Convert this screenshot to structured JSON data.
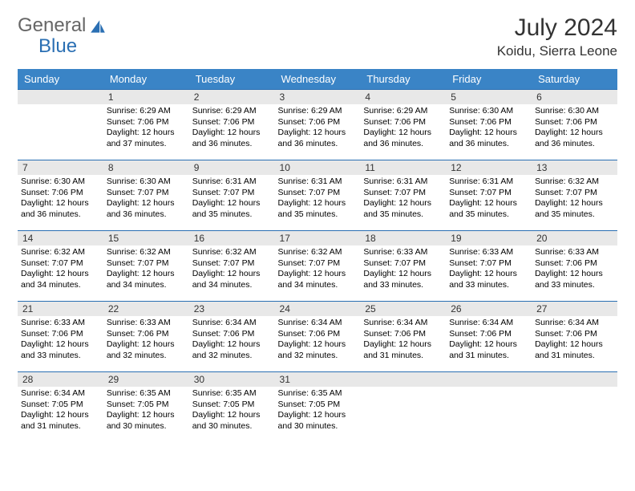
{
  "logo": {
    "part1": "General",
    "part2": "Blue"
  },
  "title": "July 2024",
  "location": "Koidu, Sierra Leone",
  "colors": {
    "header_bg": "#3a84c6",
    "header_text": "#ffffff",
    "row_divider": "#2a6fb3",
    "daynum_bg": "#e8e8e8",
    "page_bg": "#ffffff",
    "text": "#000000",
    "logo_gray": "#666666",
    "logo_blue": "#2a6fb3"
  },
  "weekdays": [
    "Sunday",
    "Monday",
    "Tuesday",
    "Wednesday",
    "Thursday",
    "Friday",
    "Saturday"
  ],
  "weeks": [
    [
      null,
      {
        "n": "1",
        "sr": "6:29 AM",
        "ss": "7:06 PM",
        "dl": "12 hours and 37 minutes."
      },
      {
        "n": "2",
        "sr": "6:29 AM",
        "ss": "7:06 PM",
        "dl": "12 hours and 36 minutes."
      },
      {
        "n": "3",
        "sr": "6:29 AM",
        "ss": "7:06 PM",
        "dl": "12 hours and 36 minutes."
      },
      {
        "n": "4",
        "sr": "6:29 AM",
        "ss": "7:06 PM",
        "dl": "12 hours and 36 minutes."
      },
      {
        "n": "5",
        "sr": "6:30 AM",
        "ss": "7:06 PM",
        "dl": "12 hours and 36 minutes."
      },
      {
        "n": "6",
        "sr": "6:30 AM",
        "ss": "7:06 PM",
        "dl": "12 hours and 36 minutes."
      }
    ],
    [
      {
        "n": "7",
        "sr": "6:30 AM",
        "ss": "7:06 PM",
        "dl": "12 hours and 36 minutes."
      },
      {
        "n": "8",
        "sr": "6:30 AM",
        "ss": "7:07 PM",
        "dl": "12 hours and 36 minutes."
      },
      {
        "n": "9",
        "sr": "6:31 AM",
        "ss": "7:07 PM",
        "dl": "12 hours and 35 minutes."
      },
      {
        "n": "10",
        "sr": "6:31 AM",
        "ss": "7:07 PM",
        "dl": "12 hours and 35 minutes."
      },
      {
        "n": "11",
        "sr": "6:31 AM",
        "ss": "7:07 PM",
        "dl": "12 hours and 35 minutes."
      },
      {
        "n": "12",
        "sr": "6:31 AM",
        "ss": "7:07 PM",
        "dl": "12 hours and 35 minutes."
      },
      {
        "n": "13",
        "sr": "6:32 AM",
        "ss": "7:07 PM",
        "dl": "12 hours and 35 minutes."
      }
    ],
    [
      {
        "n": "14",
        "sr": "6:32 AM",
        "ss": "7:07 PM",
        "dl": "12 hours and 34 minutes."
      },
      {
        "n": "15",
        "sr": "6:32 AM",
        "ss": "7:07 PM",
        "dl": "12 hours and 34 minutes."
      },
      {
        "n": "16",
        "sr": "6:32 AM",
        "ss": "7:07 PM",
        "dl": "12 hours and 34 minutes."
      },
      {
        "n": "17",
        "sr": "6:32 AM",
        "ss": "7:07 PM",
        "dl": "12 hours and 34 minutes."
      },
      {
        "n": "18",
        "sr": "6:33 AM",
        "ss": "7:07 PM",
        "dl": "12 hours and 33 minutes."
      },
      {
        "n": "19",
        "sr": "6:33 AM",
        "ss": "7:07 PM",
        "dl": "12 hours and 33 minutes."
      },
      {
        "n": "20",
        "sr": "6:33 AM",
        "ss": "7:06 PM",
        "dl": "12 hours and 33 minutes."
      }
    ],
    [
      {
        "n": "21",
        "sr": "6:33 AM",
        "ss": "7:06 PM",
        "dl": "12 hours and 33 minutes."
      },
      {
        "n": "22",
        "sr": "6:33 AM",
        "ss": "7:06 PM",
        "dl": "12 hours and 32 minutes."
      },
      {
        "n": "23",
        "sr": "6:34 AM",
        "ss": "7:06 PM",
        "dl": "12 hours and 32 minutes."
      },
      {
        "n": "24",
        "sr": "6:34 AM",
        "ss": "7:06 PM",
        "dl": "12 hours and 32 minutes."
      },
      {
        "n": "25",
        "sr": "6:34 AM",
        "ss": "7:06 PM",
        "dl": "12 hours and 31 minutes."
      },
      {
        "n": "26",
        "sr": "6:34 AM",
        "ss": "7:06 PM",
        "dl": "12 hours and 31 minutes."
      },
      {
        "n": "27",
        "sr": "6:34 AM",
        "ss": "7:06 PM",
        "dl": "12 hours and 31 minutes."
      }
    ],
    [
      {
        "n": "28",
        "sr": "6:34 AM",
        "ss": "7:05 PM",
        "dl": "12 hours and 31 minutes."
      },
      {
        "n": "29",
        "sr": "6:35 AM",
        "ss": "7:05 PM",
        "dl": "12 hours and 30 minutes."
      },
      {
        "n": "30",
        "sr": "6:35 AM",
        "ss": "7:05 PM",
        "dl": "12 hours and 30 minutes."
      },
      {
        "n": "31",
        "sr": "6:35 AM",
        "ss": "7:05 PM",
        "dl": "12 hours and 30 minutes."
      },
      null,
      null,
      null
    ]
  ],
  "labels": {
    "sunrise": "Sunrise:",
    "sunset": "Sunset:",
    "daylight": "Daylight:"
  }
}
